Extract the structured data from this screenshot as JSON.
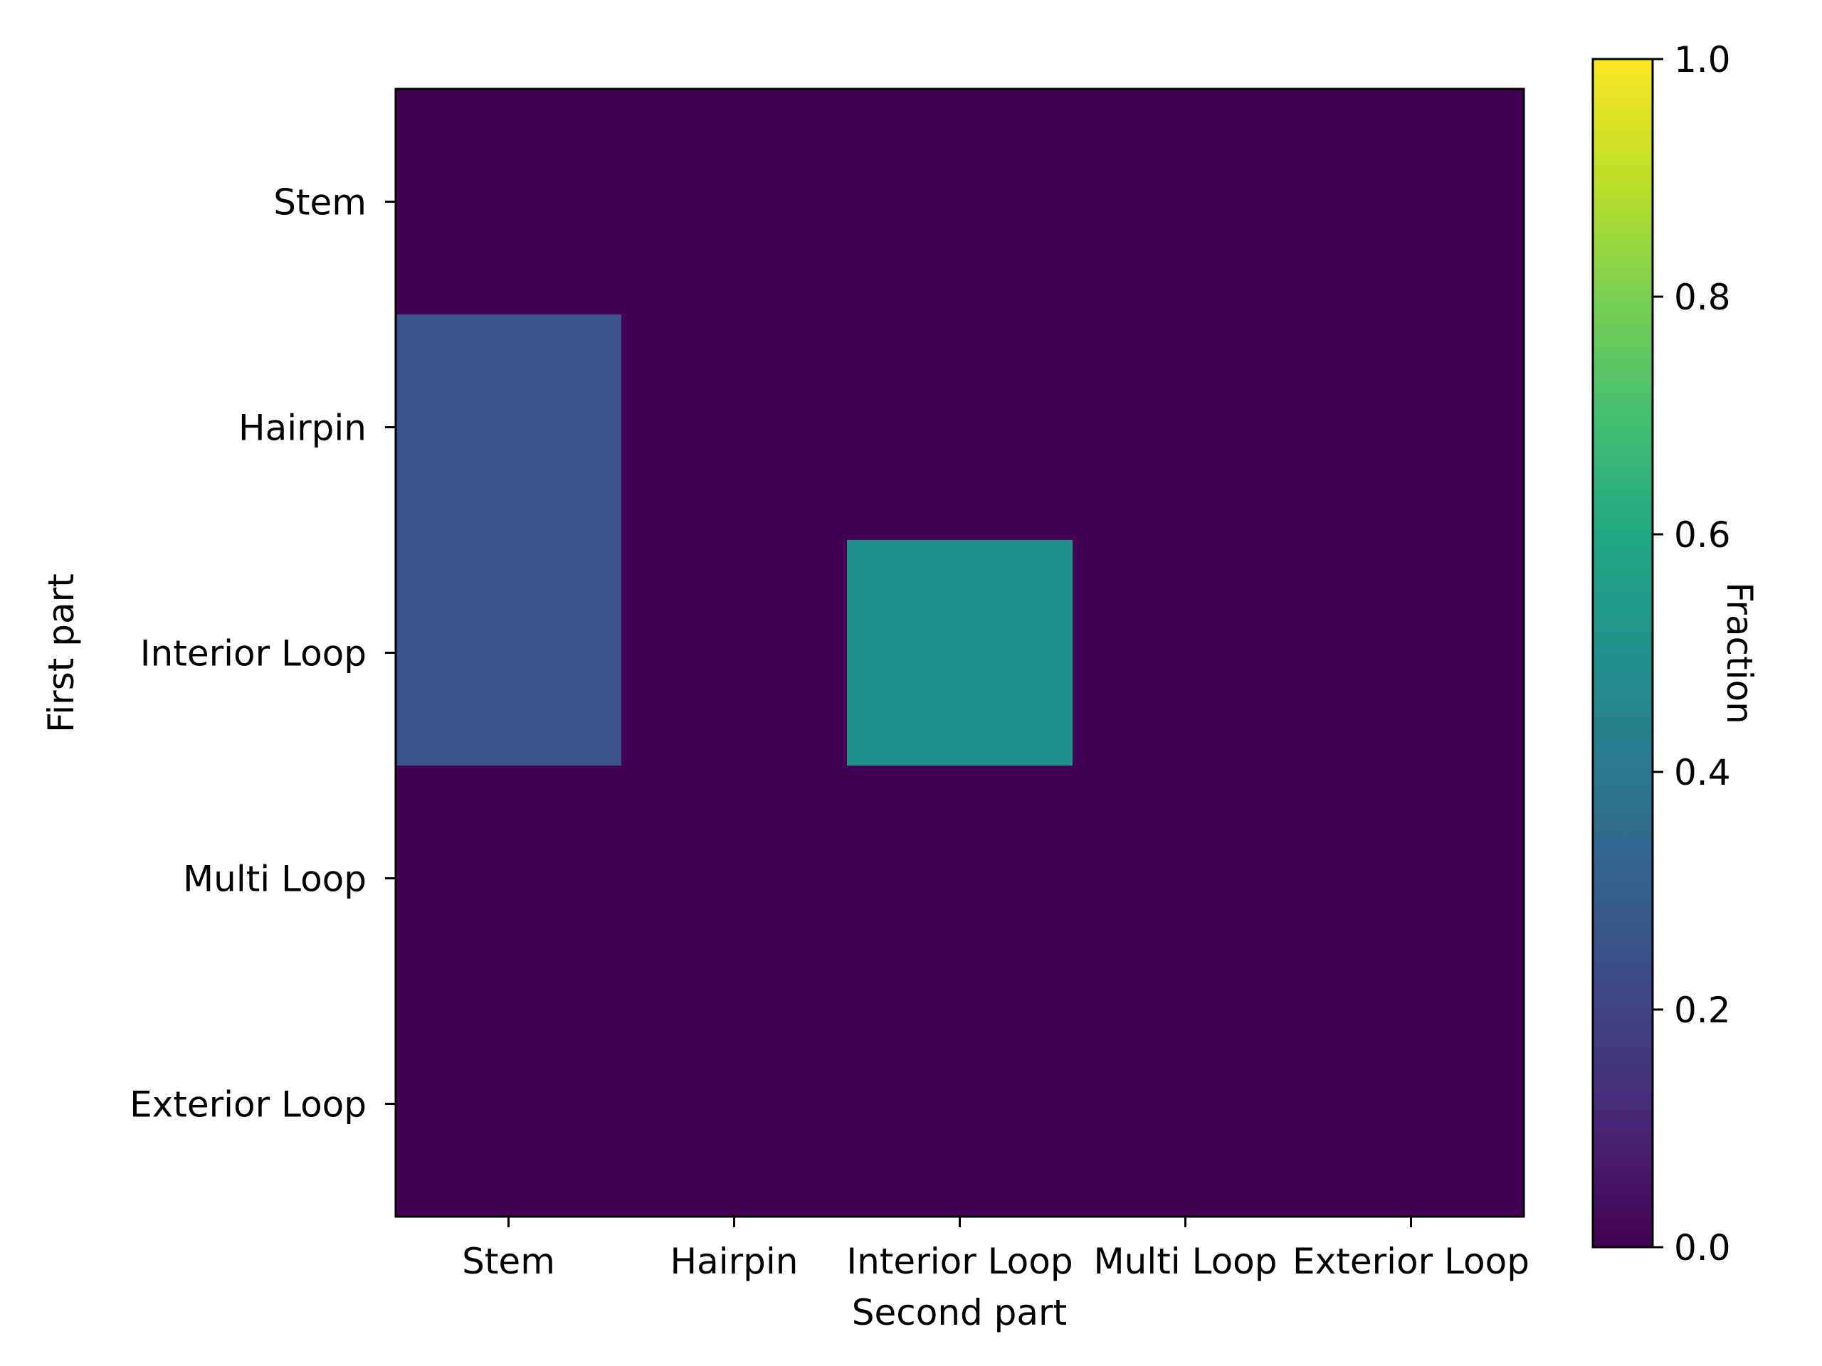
{
  "chart_data": {
    "type": "heatmap",
    "title": "",
    "xlabel": "Second part",
    "ylabel": "First part",
    "x_categories": [
      "Stem",
      "Hairpin",
      "Interior Loop",
      "Multi Loop",
      "Exterior Loop"
    ],
    "y_categories": [
      "Stem",
      "Hairpin",
      "Interior Loop",
      "Multi Loop",
      "Exterior Loop"
    ],
    "values": [
      [
        0,
        0,
        0,
        0,
        0
      ],
      [
        0.25,
        0,
        0,
        0,
        0
      ],
      [
        0.25,
        0,
        0.5,
        0,
        0
      ],
      [
        0,
        0,
        0,
        0,
        0
      ],
      [
        0,
        0,
        0,
        0,
        0
      ]
    ],
    "colormap": "viridis",
    "colorbar": {
      "label": "Fraction",
      "range": [
        0,
        1
      ],
      "ticks": [
        "0.0",
        "0.2",
        "0.4",
        "0.6",
        "0.8",
        "1.0"
      ],
      "tick_values": [
        0,
        0.2,
        0.4,
        0.6,
        0.8,
        1.0
      ]
    },
    "grid": false,
    "legend": "none"
  }
}
